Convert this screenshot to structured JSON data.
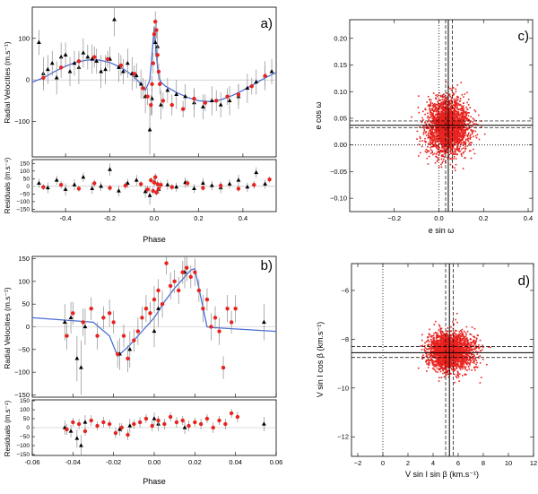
{
  "chart_data": [
    {
      "id": "a",
      "type": "scatter",
      "panel_label": "a)",
      "xlabel": "Phase",
      "ylabel_top": "Radial Velocities (m.s⁻¹)",
      "ylabel_bottom": "Residuals (m.s⁻¹)",
      "xlim": [
        -0.55,
        0.55
      ],
      "ylim_top": [
        -185,
        175
      ],
      "ylim_bottom": [
        -165,
        175
      ],
      "xticks": [
        "-0.4",
        "-0.2",
        "0.0",
        "0.2",
        "0.4"
      ],
      "xtick_values": [
        -0.4,
        -0.2,
        0.0,
        0.2,
        0.4
      ],
      "yticks_top": [
        "100",
        "0",
        "−100"
      ],
      "ytick_values_top": [
        100,
        0,
        -100
      ],
      "yticks_bottom": [
        "150",
        "100",
        "50",
        "0",
        "−50",
        "−100",
        "−150"
      ],
      "ytick_values_bottom": [
        150,
        100,
        50,
        0,
        -50,
        -100,
        -150
      ],
      "colors": {
        "black_series": "#000000",
        "red_series": "#e8231f",
        "fit": "#4a6fd6",
        "error": "#8c8c8c"
      },
      "fit_curve": {
        "x": [
          -0.55,
          -0.5,
          -0.45,
          -0.4,
          -0.35,
          -0.3,
          -0.25,
          -0.2,
          -0.15,
          -0.1,
          -0.06,
          -0.04,
          -0.02,
          -0.01,
          0.0,
          0.01,
          0.015,
          0.02,
          0.03,
          0.05,
          0.1,
          0.15,
          0.2,
          0.25,
          0.3,
          0.35,
          0.4,
          0.45,
          0.5,
          0.55
        ],
        "y": [
          -5,
          5,
          20,
          33,
          43,
          48,
          48,
          42,
          30,
          12,
          -10,
          -25,
          0,
          60,
          128,
          60,
          30,
          10,
          -5,
          -15,
          -30,
          -42,
          -50,
          -52,
          -48,
          -38,
          -25,
          -10,
          5,
          18
        ]
      },
      "series": [
        {
          "name": "black",
          "marker": "triangle",
          "x": [
            -0.52,
            -0.5,
            -0.48,
            -0.46,
            -0.44,
            -0.42,
            -0.4,
            -0.38,
            -0.36,
            -0.34,
            -0.32,
            -0.3,
            -0.28,
            -0.26,
            -0.24,
            -0.22,
            -0.2,
            -0.18,
            -0.16,
            -0.14,
            -0.12,
            -0.1,
            -0.08,
            -0.06,
            -0.04,
            -0.02,
            -0.01,
            0.005,
            0.015,
            0.03,
            0.06,
            0.1,
            0.14,
            0.18,
            0.22,
            0.26,
            0.3,
            0.34,
            0.38,
            0.42,
            0.46,
            0.5,
            0.53
          ],
          "y": [
            90,
            15,
            25,
            40,
            5,
            55,
            60,
            20,
            40,
            30,
            65,
            55,
            50,
            45,
            20,
            25,
            50,
            145,
            30,
            20,
            40,
            15,
            10,
            -10,
            -40,
            -120,
            -45,
            90,
            80,
            -60,
            -25,
            -35,
            -40,
            -55,
            -65,
            -50,
            -60,
            -50,
            -40,
            -20,
            -5,
            10,
            20
          ],
          "err": [
            30,
            40,
            35,
            30,
            40,
            35,
            30,
            35,
            30,
            40,
            35,
            30,
            35,
            30,
            40,
            35,
            30,
            40,
            35,
            30,
            35,
            40,
            30,
            35,
            40,
            60,
            40,
            35,
            40,
            35,
            30,
            35,
            30,
            35,
            30,
            35,
            30,
            35,
            30,
            35,
            30,
            35,
            30
          ]
        },
        {
          "name": "red",
          "marker": "circle",
          "x": [
            -0.5,
            -0.42,
            -0.34,
            -0.27,
            -0.21,
            -0.15,
            -0.09,
            -0.05,
            -0.03,
            -0.015,
            -0.01,
            -0.005,
            0.0,
            0.005,
            0.01,
            0.015,
            0.02,
            0.025,
            0.04,
            0.08,
            0.13,
            0.18,
            0.23,
            0.28,
            0.33,
            0.38,
            0.44,
            0.5
          ],
          "y": [
            5,
            30,
            45,
            55,
            50,
            35,
            15,
            -20,
            -40,
            -60,
            -10,
            40,
            110,
            140,
            120,
            60,
            20,
            -10,
            -50,
            -60,
            -70,
            -45,
            -55,
            -50,
            -40,
            -35,
            -15,
            10
          ],
          "err": [
            20,
            25,
            20,
            25,
            20,
            25,
            20,
            25,
            20,
            25,
            20,
            25,
            20,
            25,
            20,
            25,
            20,
            25,
            20,
            25,
            20,
            25,
            20,
            25,
            20,
            25,
            20,
            25
          ]
        }
      ],
      "residuals": [
        {
          "name": "black",
          "marker": "triangle",
          "x": [
            -0.52,
            -0.48,
            -0.44,
            -0.4,
            -0.36,
            -0.32,
            -0.28,
            -0.24,
            -0.2,
            -0.16,
            -0.12,
            -0.08,
            -0.04,
            -0.02,
            0.0,
            0.02,
            0.06,
            0.1,
            0.14,
            0.18,
            0.22,
            0.26,
            0.3,
            0.34,
            0.38,
            0.42,
            0.46,
            0.5
          ],
          "y": [
            20,
            -10,
            40,
            -20,
            10,
            60,
            -15,
            0,
            110,
            -30,
            20,
            40,
            -35,
            -60,
            30,
            -20,
            10,
            -5,
            25,
            -15,
            20,
            5,
            -10,
            15,
            40,
            -5,
            90,
            15
          ],
          "err": [
            30,
            35,
            30,
            40,
            35,
            30,
            35,
            30,
            40,
            35,
            30,
            35,
            40,
            60,
            35,
            30,
            35,
            30,
            35,
            30,
            35,
            30,
            35,
            30,
            35,
            30,
            35,
            30
          ]
        },
        {
          "name": "red",
          "marker": "circle",
          "x": [
            -0.5,
            -0.42,
            -0.34,
            -0.27,
            -0.2,
            -0.13,
            -0.06,
            -0.03,
            -0.015,
            -0.005,
            0.0,
            0.005,
            0.01,
            0.015,
            0.02,
            0.03,
            0.08,
            0.15,
            0.22,
            0.3,
            0.38,
            0.45,
            0.52
          ],
          "y": [
            -5,
            10,
            -15,
            20,
            -10,
            5,
            15,
            -20,
            40,
            -30,
            25,
            60,
            -40,
            15,
            -15,
            10,
            -5,
            20,
            -10,
            5,
            -15,
            10,
            45
          ],
          "err": [
            20,
            25,
            20,
            25,
            20,
            25,
            20,
            25,
            20,
            25,
            20,
            25,
            20,
            25,
            20,
            25,
            20,
            25,
            20,
            25,
            20,
            25,
            20
          ]
        }
      ]
    },
    {
      "id": "b",
      "type": "scatter",
      "panel_label": "b)",
      "xlabel": "Phase",
      "ylabel_top": "Radial Velocities (m.s⁻¹)",
      "ylabel_bottom": "Residuals (m.s⁻¹)",
      "xlim": [
        -0.06,
        0.06
      ],
      "ylim_top": [
        -155,
        155
      ],
      "ylim_bottom": [
        -155,
        155
      ],
      "xticks": [
        "-0.06",
        "-0.04",
        "-0.02",
        "0.00",
        "0.02",
        "0.04",
        "0.06"
      ],
      "xtick_values": [
        -0.06,
        -0.04,
        -0.02,
        0.0,
        0.02,
        0.04,
        0.06
      ],
      "yticks_top": [
        "150",
        "100",
        "50",
        "0",
        "−50",
        "−100",
        "−150"
      ],
      "ytick_values_top": [
        150,
        100,
        50,
        0,
        -50,
        -100,
        -150
      ],
      "yticks_bottom": [
        "150",
        "100",
        "50",
        "0",
        "−50",
        "−100",
        "−150"
      ],
      "ytick_values_bottom": [
        150,
        100,
        50,
        0,
        -50,
        -100,
        -150
      ],
      "colors": {
        "black_series": "#000000",
        "red_series": "#e8231f",
        "fit": "#4a6fd6",
        "error": "#8c8c8c"
      },
      "fit_curve": {
        "x": [
          -0.06,
          -0.03,
          -0.022,
          -0.018,
          -0.012,
          -0.005,
          0.0,
          0.005,
          0.01,
          0.015,
          0.018,
          0.02,
          0.026,
          0.03,
          0.06
        ],
        "y": [
          20,
          10,
          -20,
          -65,
          -40,
          -5,
          20,
          55,
          85,
          110,
          125,
          128,
          0,
          -2,
          -10
        ]
      },
      "series": [
        {
          "name": "black",
          "marker": "triangle",
          "x": [
            -0.044,
            -0.041,
            -0.038,
            -0.036,
            -0.034,
            -0.017,
            -0.012,
            0.0,
            0.002,
            0.015,
            0.054
          ],
          "y": [
            10,
            20,
            -70,
            -90,
            0,
            -60,
            -50,
            -10,
            40,
            120,
            10
          ],
          "err": [
            40,
            35,
            50,
            60,
            40,
            35,
            40,
            35,
            40,
            35,
            40
          ]
        },
        {
          "name": "red",
          "marker": "circle",
          "x": [
            -0.043,
            -0.04,
            -0.035,
            -0.031,
            -0.028,
            -0.025,
            -0.022,
            -0.02,
            -0.018,
            -0.015,
            -0.013,
            -0.01,
            -0.008,
            -0.006,
            -0.004,
            -0.002,
            0.0,
            0.002,
            0.004,
            0.006,
            0.008,
            0.01,
            0.012,
            0.014,
            0.016,
            0.018,
            0.02,
            0.022,
            0.024,
            0.026,
            0.028,
            0.03,
            0.032,
            0.034,
            0.036,
            0.038,
            0.04
          ],
          "y": [
            -20,
            30,
            10,
            40,
            -20,
            20,
            30,
            10,
            -60,
            -20,
            -70,
            -30,
            -10,
            20,
            40,
            30,
            60,
            80,
            50,
            140,
            90,
            100,
            80,
            120,
            130,
            110,
            120,
            80,
            40,
            60,
            0,
            20,
            -10,
            -90,
            40,
            10,
            40
          ],
          "err": [
            30,
            25,
            30,
            25,
            30,
            25,
            30,
            25,
            30,
            25,
            30,
            25,
            30,
            25,
            30,
            25,
            30,
            25,
            30,
            25,
            30,
            25,
            30,
            25,
            30,
            25,
            30,
            25,
            30,
            25,
            30,
            25,
            30,
            25,
            30,
            25,
            30
          ]
        }
      ],
      "residuals": [
        {
          "name": "black",
          "marker": "triangle",
          "x": [
            -0.044,
            -0.041,
            -0.038,
            -0.036,
            -0.034,
            -0.017,
            -0.012,
            0.0,
            0.002,
            0.015,
            0.054
          ],
          "y": [
            0,
            -20,
            -60,
            -100,
            30,
            -10,
            10,
            50,
            20,
            0,
            20
          ],
          "err": [
            40,
            35,
            50,
            60,
            40,
            35,
            40,
            35,
            40,
            35,
            40
          ]
        },
        {
          "name": "red",
          "marker": "circle",
          "x": [
            -0.043,
            -0.04,
            -0.037,
            -0.034,
            -0.031,
            -0.028,
            -0.025,
            -0.022,
            -0.019,
            -0.016,
            -0.013,
            -0.01,
            -0.007,
            -0.004,
            -0.001,
            0.002,
            0.005,
            0.008,
            0.011,
            0.014,
            0.017,
            0.02,
            0.023,
            0.026,
            0.029,
            0.032,
            0.035,
            0.038,
            0.041
          ],
          "y": [
            -10,
            30,
            20,
            -20,
            40,
            10,
            30,
            20,
            -30,
            0,
            -40,
            20,
            30,
            50,
            10,
            40,
            20,
            60,
            30,
            40,
            10,
            30,
            20,
            50,
            0,
            40,
            20,
            80,
            60
          ],
          "err": [
            30,
            25,
            30,
            25,
            30,
            25,
            30,
            25,
            30,
            25,
            30,
            25,
            30,
            25,
            30,
            25,
            30,
            25,
            30,
            25,
            30,
            25,
            30,
            25,
            30,
            25,
            30,
            25,
            30
          ]
        }
      ]
    },
    {
      "id": "c",
      "type": "scatter",
      "panel_label": "c)",
      "xlabel": "e sin ω",
      "ylabel": "e cos ω",
      "xlim": [
        -0.4,
        0.42
      ],
      "ylim": [
        -0.125,
        0.235
      ],
      "xticks": [
        "−0.2",
        "0.0",
        "0.2",
        "0.4"
      ],
      "xtick_values": [
        -0.2,
        0.0,
        0.2,
        0.4
      ],
      "yticks": [
        "0.20",
        "0.15",
        "0.10",
        "0.05",
        "0.00",
        "−0.05",
        "−0.10"
      ],
      "ytick_values": [
        0.2,
        0.15,
        0.1,
        0.05,
        0.0,
        -0.05,
        -0.1
      ],
      "cloud": {
        "center": [
          0.04,
          0.035
        ],
        "spread": [
          0.085,
          0.045
        ],
        "color": "#e8231f"
      },
      "lines": {
        "vertical_solid": 0.042,
        "vertical_dashed": [
          0.03,
          0.06
        ],
        "vertical_dotted": 0.0,
        "horizontal_solid": 0.037,
        "horizontal_dashed": [
          0.032,
          0.045
        ],
        "horizontal_dotted": 0.0
      }
    },
    {
      "id": "d",
      "type": "scatter",
      "panel_label": "d)",
      "xlabel": "V sin I  sin β  (km.s⁻¹)",
      "ylabel": "V sin I  cos β  (km.s⁻¹)",
      "xlim": [
        -2.5,
        12
      ],
      "ylim": [
        -12.8,
        -4.9
      ],
      "xticks": [
        "−2",
        "0",
        "2",
        "4",
        "6",
        "8",
        "10",
        "12"
      ],
      "xtick_values": [
        -2,
        0,
        2,
        4,
        6,
        8,
        10,
        12
      ],
      "yticks": [
        "−6",
        "−8",
        "−10",
        "−12"
      ],
      "ytick_values": [
        -6,
        -8,
        -10,
        -12
      ],
      "cloud": {
        "center": [
          5.2,
          -8.5
        ],
        "spread": [
          1.3,
          0.7
        ],
        "color": "#e8231f"
      },
      "lines": {
        "vertical_solid": 5.3,
        "vertical_dashed": [
          5.0,
          5.6
        ],
        "vertical_dotted": 0.0,
        "horizontal_solid": -8.55,
        "horizontal_dashed": [
          -8.3,
          -8.75
        ]
      }
    }
  ]
}
